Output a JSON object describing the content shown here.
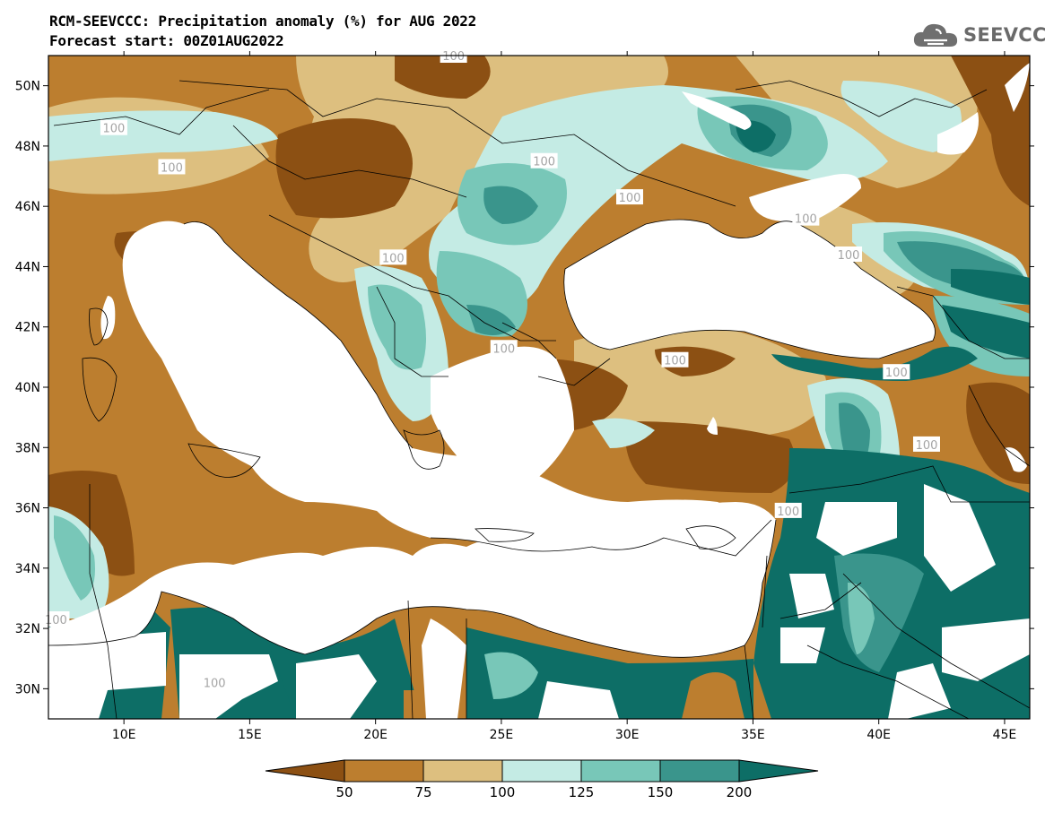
{
  "title": "RCM-SEEVCCC: Precipitation anomaly (%) for AUG 2022",
  "subtitle": "Forecast start: 00Z01AUG2022",
  "logo": {
    "text": "SEEVCCC",
    "icon": "cloud-icon"
  },
  "map": {
    "lon_range": [
      7,
      46
    ],
    "lat_range": [
      29,
      51
    ],
    "lon_ticks": [
      {
        "v": 10,
        "label": "10E"
      },
      {
        "v": 15,
        "label": "15E"
      },
      {
        "v": 20,
        "label": "20E"
      },
      {
        "v": 25,
        "label": "25E"
      },
      {
        "v": 30,
        "label": "30E"
      },
      {
        "v": 35,
        "label": "35E"
      },
      {
        "v": 40,
        "label": "40E"
      },
      {
        "v": 45,
        "label": "45E"
      }
    ],
    "lat_ticks": [
      {
        "v": 50,
        "label": "50N"
      },
      {
        "v": 48,
        "label": "48N"
      },
      {
        "v": 46,
        "label": "46N"
      },
      {
        "v": 44,
        "label": "44N"
      },
      {
        "v": 42,
        "label": "42N"
      },
      {
        "v": 40,
        "label": "40N"
      },
      {
        "v": 38,
        "label": "38N"
      },
      {
        "v": 36,
        "label": "36N"
      },
      {
        "v": 34,
        "label": "34N"
      },
      {
        "v": 32,
        "label": "32N"
      },
      {
        "v": 30,
        "label": "30N"
      }
    ],
    "contour_labels": [
      {
        "text": "100",
        "lon": 23.1,
        "lat": 51.0
      },
      {
        "text": "100",
        "lon": 9.6,
        "lat": 48.6
      },
      {
        "text": "100",
        "lon": 11.9,
        "lat": 47.3
      },
      {
        "text": "100",
        "lon": 26.7,
        "lat": 47.5
      },
      {
        "text": "100",
        "lon": 30.1,
        "lat": 46.3
      },
      {
        "text": "100",
        "lon": 37.1,
        "lat": 45.6
      },
      {
        "text": "100",
        "lon": 38.8,
        "lat": 44.4
      },
      {
        "text": "100",
        "lon": 20.7,
        "lat": 44.3
      },
      {
        "text": "100",
        "lon": 25.1,
        "lat": 41.3
      },
      {
        "text": "100",
        "lon": 31.9,
        "lat": 40.9
      },
      {
        "text": "100",
        "lon": 40.7,
        "lat": 40.5
      },
      {
        "text": "100",
        "lon": 41.9,
        "lat": 38.1
      },
      {
        "text": "100",
        "lon": 36.4,
        "lat": 35.9
      },
      {
        "text": "100",
        "lon": 7.3,
        "lat": 32.3
      },
      {
        "text": "100",
        "lon": 13.6,
        "lat": 30.2
      }
    ]
  },
  "colorbar": {
    "colors": [
      "#8c5013",
      "#bc7e2f",
      "#ddbf7f",
      "#c4ebe4",
      "#78c7b8",
      "#3a958c",
      "#0d6e66"
    ],
    "tick_labels": [
      "50",
      "75",
      "100",
      "125",
      "150",
      "200"
    ]
  }
}
